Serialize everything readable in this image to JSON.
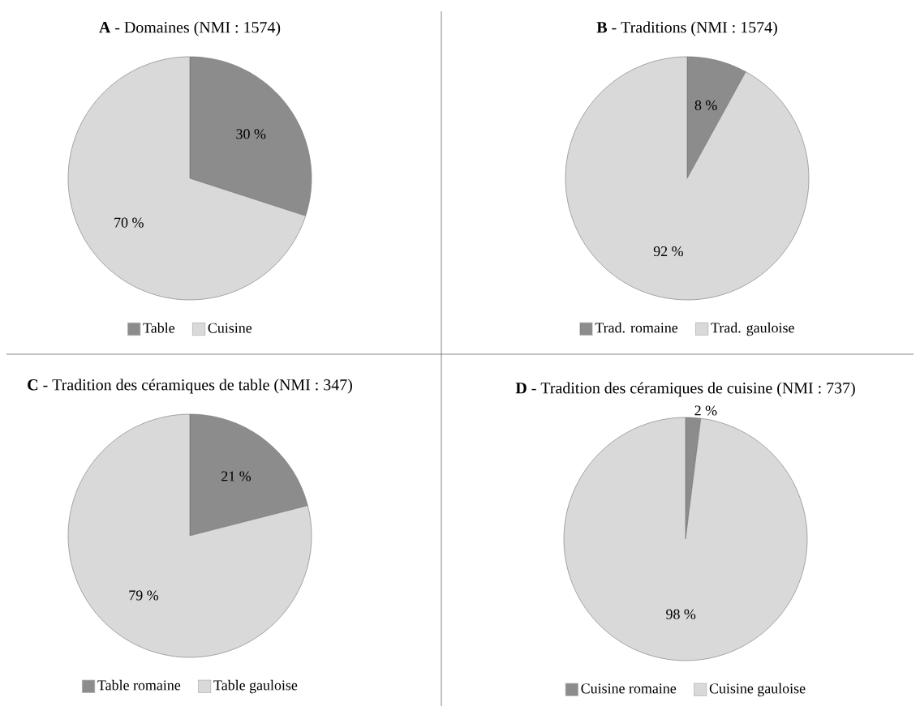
{
  "chart_data": [
    {
      "type": "pie",
      "title": "**A** - Domaines (NMI : 1574)",
      "categories": [
        "Table",
        "Cuisine"
      ],
      "values": [
        30,
        70
      ],
      "colors": [
        "#8c8c8c",
        "#d9d9d9"
      ],
      "value_labels": [
        "30 %",
        "70 %"
      ],
      "legend": "bottom"
    },
    {
      "type": "pie",
      "title": "**B** - Traditions (NMI : 1574)",
      "categories": [
        "Trad. romaine",
        "Trad. gauloise"
      ],
      "values": [
        8,
        92
      ],
      "colors": [
        "#8c8c8c",
        "#d9d9d9"
      ],
      "value_labels": [
        "8 %",
        "92 %"
      ],
      "legend": "bottom"
    },
    {
      "type": "pie",
      "title": "**C** - Tradition des céramiques de table (NMI : 347)",
      "categories": [
        "Table romaine",
        "Table gauloise"
      ],
      "values": [
        21,
        79
      ],
      "colors": [
        "#8c8c8c",
        "#d9d9d9"
      ],
      "value_labels": [
        "21 %",
        "79 %"
      ],
      "legend": "bottom"
    },
    {
      "type": "pie",
      "title": "**D** - Tradition des céramiques de cuisine (NMI : 737)",
      "categories": [
        "Cuisine romaine",
        "Cuisine gauloise"
      ],
      "values": [
        2,
        98
      ],
      "colors": [
        "#8c8c8c",
        "#d9d9d9"
      ],
      "value_labels": [
        "2 %",
        "98 %"
      ],
      "legend": "bottom"
    }
  ]
}
